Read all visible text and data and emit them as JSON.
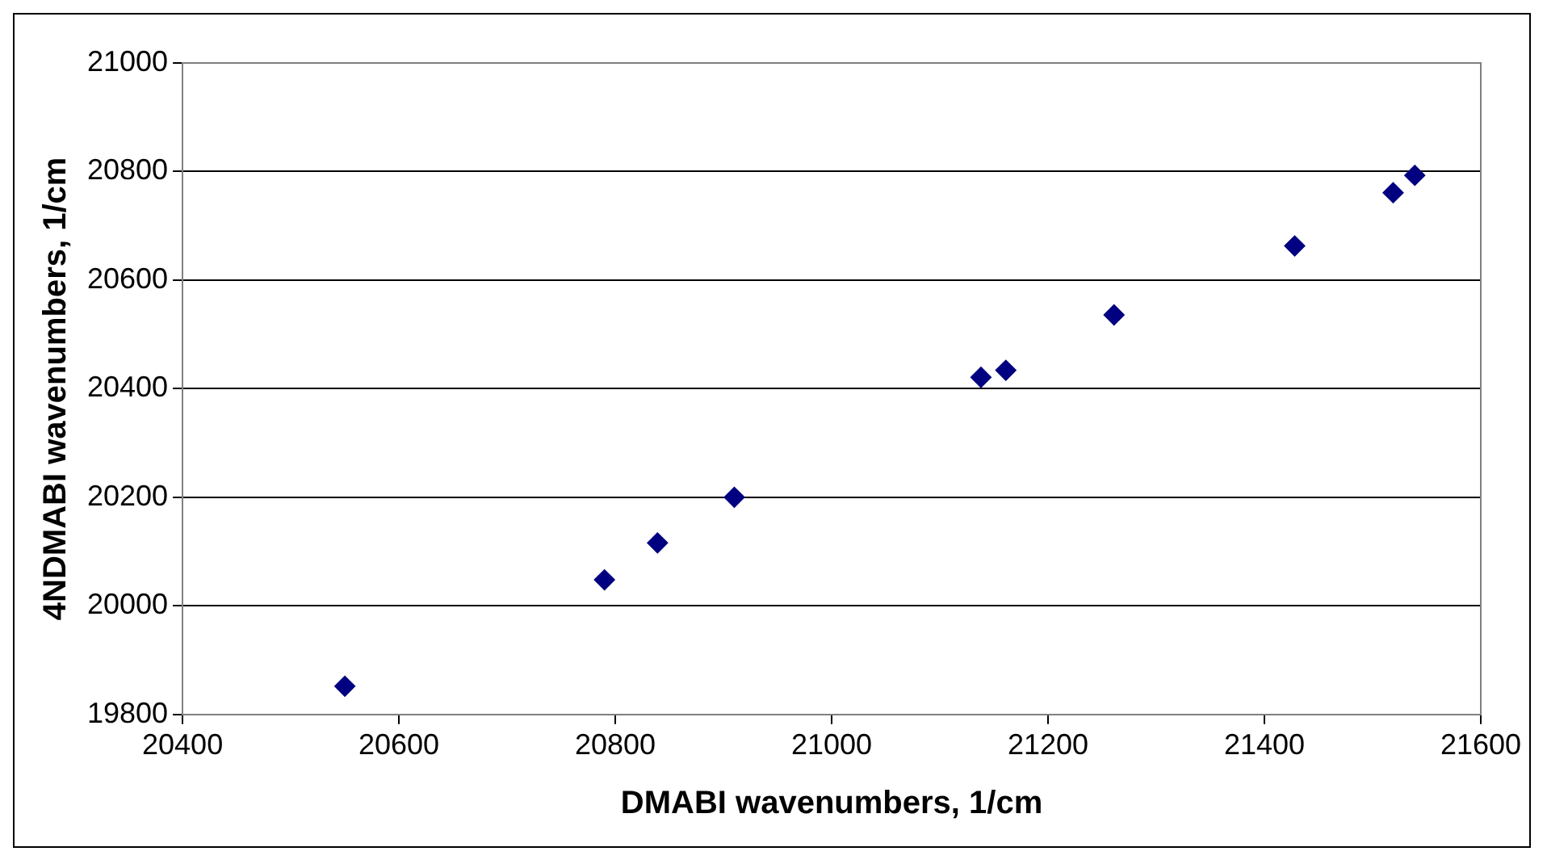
{
  "chart_data": {
    "type": "scatter",
    "xlabel": "DMABI wavenumbers, 1/cm",
    "ylabel": "4NDMABI wavenumbers, 1/cm",
    "x": [
      20550,
      20790,
      20839,
      20910,
      21138,
      21161,
      21261,
      21428,
      21519,
      21539
    ],
    "series": [
      {
        "color": "#000080",
        "values": [
          19852,
          20048,
          20116,
          20200,
          20421,
          20434,
          20536,
          20663,
          20761,
          20793
        ]
      }
    ],
    "xlim": [
      20400,
      21600
    ],
    "xticks": [
      20400,
      20600,
      20800,
      21000,
      21200,
      21400,
      21600
    ],
    "ylim": [
      19800,
      21000
    ],
    "yticks": [
      19800,
      20000,
      20200,
      20400,
      20600,
      20800,
      21000
    ],
    "grid": "y",
    "legend": false,
    "marker": "diamond"
  }
}
